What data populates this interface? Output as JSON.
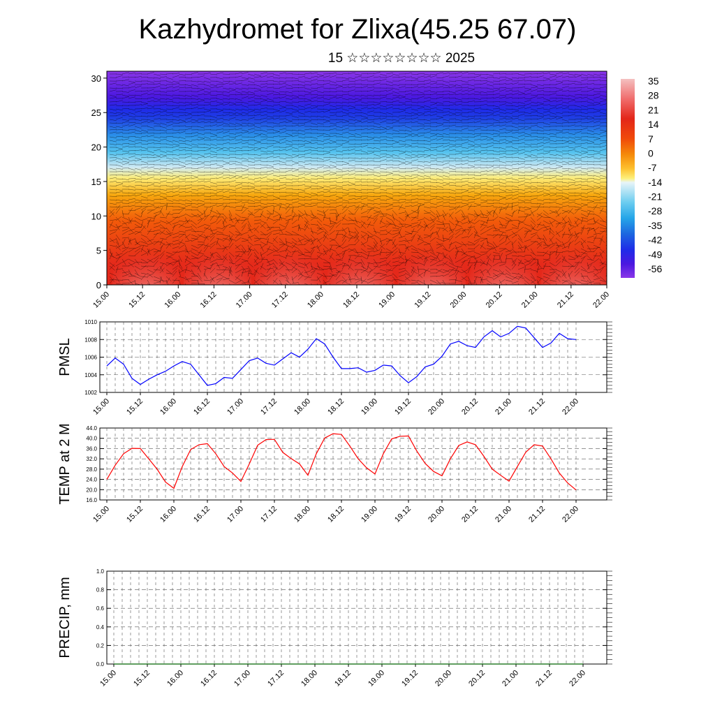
{
  "header": {
    "title": "Kazhydromet for Zlixa(45.25 67.07)",
    "subtitle": "15 ☆☆☆☆☆☆☆☆ 2025"
  },
  "chart_data": [
    {
      "type": "heatmap",
      "title": "",
      "xlabel": "",
      "ylabel": "",
      "x_ticks": [
        "15.00",
        "15.12",
        "16.00",
        "16.12",
        "17.00",
        "17.12",
        "18.00",
        "18.12",
        "19.00",
        "19.12",
        "20.00",
        "20.12",
        "21.00",
        "21.12",
        "22.00"
      ],
      "y_ticks": [
        0,
        5,
        10,
        15,
        20,
        25,
        30
      ],
      "ylim": [
        0,
        31
      ],
      "colorbar_labels": [
        "35",
        "28",
        "21",
        "14",
        "7",
        "0",
        "-7",
        "-14",
        "-21",
        "-28",
        "-35",
        "-42",
        "-49",
        "-56"
      ],
      "colorbar_colors": [
        "#f4b6b6",
        "#f06d6d",
        "#e32619",
        "#f04a0a",
        "#f58a0a",
        "#fdc02e",
        "#fdf07a",
        "#d6ecf3",
        "#6ccdf0",
        "#25a5e8",
        "#1d66e0",
        "#1f2be8",
        "#4b18e0",
        "#8a36e8"
      ],
      "has_wind_barbs": true
    },
    {
      "type": "line",
      "ylabel": "PMSL",
      "ylim": [
        1002,
        1010
      ],
      "y_ticks": [
        "1002",
        "1004",
        "1006",
        "1008",
        "1010"
      ],
      "x_ticks": [
        "15.00",
        "15.12",
        "16.00",
        "16.12",
        "17.00",
        "17.12",
        "18.00",
        "18.12",
        "19.00",
        "19.12",
        "20.00",
        "20.12",
        "21.00",
        "21.12",
        "22.00"
      ],
      "color": "#0000ff",
      "series": [
        {
          "values": [
            1005.0,
            1005.9,
            1005.2,
            1003.6,
            1002.9,
            1003.5,
            1004.0,
            1004.4,
            1005.0,
            1005.5,
            1005.2,
            1004.0,
            1002.8,
            1003.0,
            1003.7,
            1003.6,
            1004.6,
            1005.6,
            1005.9,
            1005.3,
            1005.1,
            1005.8,
            1006.5,
            1006.0,
            1006.9,
            1008.1,
            1007.5,
            1006.0,
            1004.7,
            1004.7,
            1004.8,
            1004.3,
            1004.5,
            1005.1,
            1005.0,
            1003.9,
            1003.1,
            1003.8,
            1004.9,
            1005.2,
            1006.1,
            1007.5,
            1007.8,
            1007.3,
            1007.1,
            1008.3,
            1009.0,
            1008.3,
            1008.7,
            1009.5,
            1009.3,
            1008.2,
            1007.1,
            1007.6,
            1008.7,
            1008.1,
            1008.0
          ]
        }
      ]
    },
    {
      "type": "line",
      "ylabel": "TEMP at 2 M",
      "ylim": [
        16,
        44
      ],
      "y_ticks": [
        "16.0",
        "20.0",
        "24.0",
        "28.0",
        "32.0",
        "36.0",
        "40.0",
        "44.0"
      ],
      "x_ticks": [
        "15.00",
        "15.12",
        "16.00",
        "16.12",
        "17.00",
        "17.12",
        "18.00",
        "18.12",
        "19.00",
        "19.12",
        "20.00",
        "20.12",
        "21.00",
        "21.12",
        "22.00"
      ],
      "color": "#ff0000",
      "series": [
        {
          "values": [
            24.0,
            29.5,
            34.0,
            36.1,
            36.0,
            32.0,
            28.0,
            23.0,
            20.5,
            29.0,
            35.6,
            37.5,
            37.9,
            34.0,
            29.0,
            26.5,
            23.2,
            30.0,
            37.3,
            39.5,
            39.6,
            34.5,
            32.1,
            30.0,
            25.6,
            34.0,
            40.1,
            41.8,
            41.5,
            37.0,
            32.0,
            28.5,
            26.1,
            34.0,
            39.8,
            40.8,
            40.9,
            35.0,
            30.2,
            27.1,
            25.4,
            32.0,
            37.2,
            38.6,
            37.5,
            33.0,
            28.0,
            25.6,
            23.3,
            29.0,
            34.6,
            37.5,
            37.0,
            32.0,
            26.5,
            22.6,
            19.9
          ]
        }
      ]
    },
    {
      "type": "line",
      "ylabel": "PRECIP, mm",
      "ylim": [
        0,
        1
      ],
      "y_ticks": [
        "0.0",
        "0.2",
        "0.4",
        "0.6",
        "0.8",
        "1.0"
      ],
      "x_ticks": [
        "15.00",
        "15.12",
        "16.00",
        "16.12",
        "17.00",
        "17.12",
        "18.00",
        "18.12",
        "19.00",
        "19.12",
        "20.00",
        "20.12",
        "21.00",
        "21.12",
        "22.00"
      ],
      "color": "#006400",
      "series": [
        {
          "values": [
            0,
            0,
            0,
            0,
            0,
            0,
            0,
            0,
            0,
            0,
            0,
            0,
            0,
            0,
            0,
            0,
            0,
            0,
            0,
            0,
            0,
            0,
            0,
            0,
            0,
            0,
            0,
            0,
            0,
            0,
            0,
            0,
            0,
            0,
            0,
            0,
            0,
            0,
            0,
            0,
            0,
            0,
            0,
            0,
            0,
            0,
            0,
            0,
            0,
            0,
            0,
            0,
            0,
            0,
            0,
            0,
            0
          ]
        }
      ]
    }
  ]
}
